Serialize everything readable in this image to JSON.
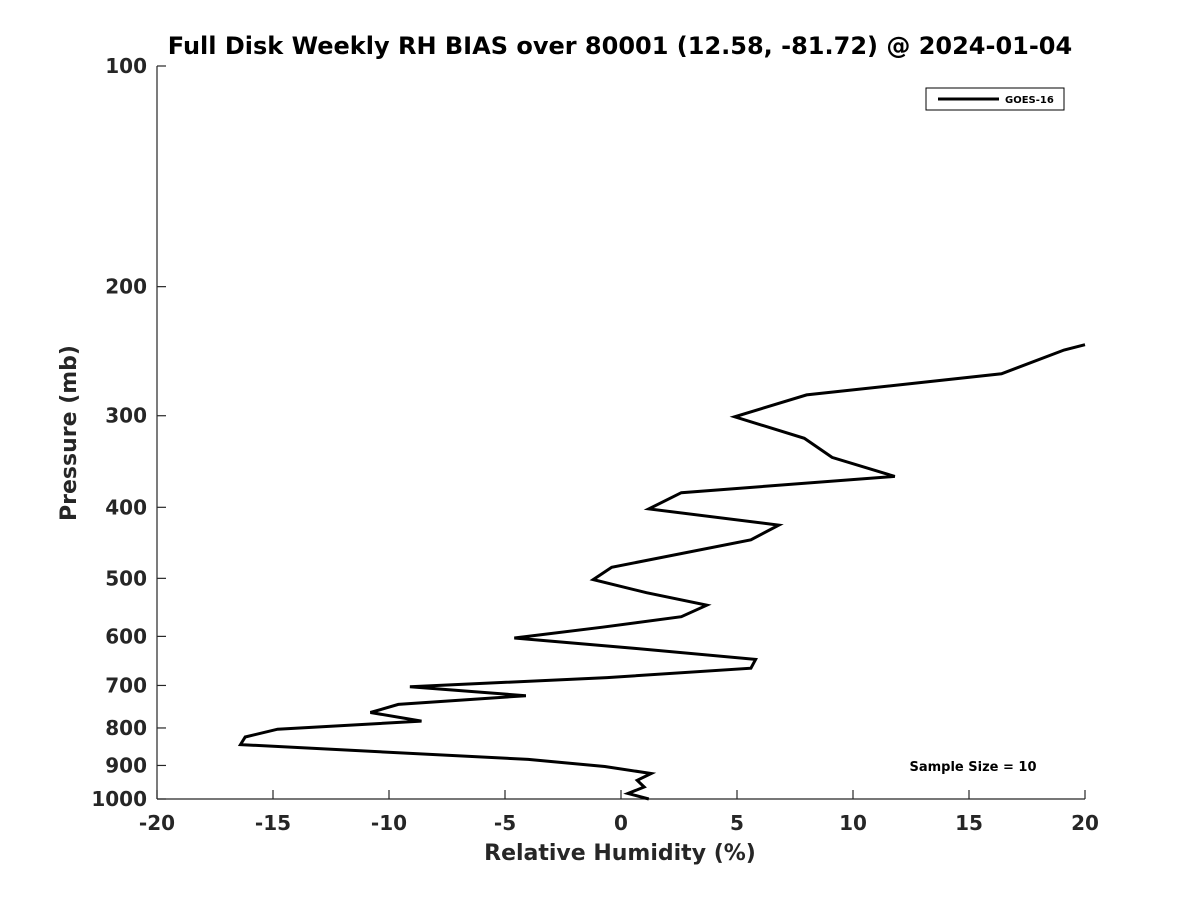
{
  "chart_data": {
    "type": "line",
    "title": "Full Disk Weekly RH BIAS over 80001 (12.58, -81.72) @ 2024-01-04",
    "xlabel": "Relative Humidity (%)",
    "ylabel": "Pressure (mb)",
    "xlim": [
      -20,
      20
    ],
    "ylim": [
      100,
      1000
    ],
    "y_scale": "log",
    "y_reversed": true,
    "x_ticks": [
      "-20",
      "-15",
      "-10",
      "-5",
      "0",
      "5",
      "10",
      "15",
      "20"
    ],
    "y_ticks": [
      "100",
      "200",
      "300",
      "400",
      "500",
      "600",
      "700",
      "800",
      "900",
      "1000"
    ],
    "grid": false,
    "legend_location": "top-right",
    "annotation": "Sample Size = 10",
    "series": [
      {
        "name": "GOES-16",
        "color": "#000000",
        "points": [
          {
            "x": 20.0,
            "y": 240
          },
          {
            "x": 19.1,
            "y": 244
          },
          {
            "x": 16.4,
            "y": 263
          },
          {
            "x": 8.0,
            "y": 281
          },
          {
            "x": 4.9,
            "y": 301
          },
          {
            "x": 7.9,
            "y": 322
          },
          {
            "x": 9.1,
            "y": 342
          },
          {
            "x": 11.8,
            "y": 363
          },
          {
            "x": 2.6,
            "y": 382
          },
          {
            "x": 1.2,
            "y": 402
          },
          {
            "x": 6.8,
            "y": 423
          },
          {
            "x": 5.6,
            "y": 443
          },
          {
            "x": -0.4,
            "y": 483
          },
          {
            "x": -1.2,
            "y": 502
          },
          {
            "x": 1.1,
            "y": 523
          },
          {
            "x": 3.7,
            "y": 544
          },
          {
            "x": 2.6,
            "y": 564
          },
          {
            "x": -0.8,
            "y": 583
          },
          {
            "x": -4.6,
            "y": 603
          },
          {
            "x": 0.6,
            "y": 623
          },
          {
            "x": 5.8,
            "y": 645
          },
          {
            "x": 5.6,
            "y": 663
          },
          {
            "x": -0.6,
            "y": 683
          },
          {
            "x": -9.1,
            "y": 703
          },
          {
            "x": -4.1,
            "y": 723
          },
          {
            "x": -9.6,
            "y": 743
          },
          {
            "x": -10.8,
            "y": 762
          },
          {
            "x": -8.6,
            "y": 783
          },
          {
            "x": -14.8,
            "y": 803
          },
          {
            "x": -16.2,
            "y": 823
          },
          {
            "x": -16.4,
            "y": 843
          },
          {
            "x": -4.0,
            "y": 883
          },
          {
            "x": -0.7,
            "y": 903
          },
          {
            "x": 1.3,
            "y": 923
          },
          {
            "x": 0.7,
            "y": 943
          },
          {
            "x": 1.0,
            "y": 963
          },
          {
            "x": 0.3,
            "y": 983
          },
          {
            "x": 1.2,
            "y": 1000
          }
        ]
      }
    ]
  }
}
